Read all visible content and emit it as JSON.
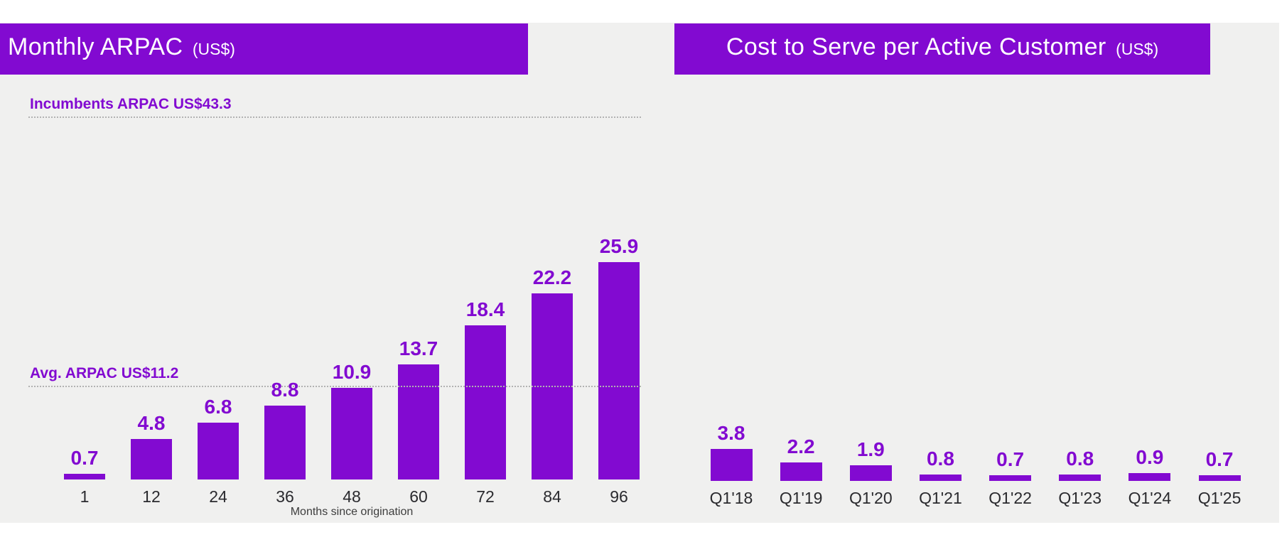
{
  "slide": {
    "background": "#ffffff",
    "panel_color": "#f0f0ef",
    "accent_purple": "#820ad1",
    "reference_line_color": "#b2b2b2",
    "tick_color": "#2a2a2e"
  },
  "chart_data": [
    {
      "type": "bar",
      "title": "Monthly ARPAC",
      "unit_suffix": "(US$)",
      "categories": [
        "1",
        "12",
        "24",
        "36",
        "48",
        "60",
        "72",
        "84",
        "96"
      ],
      "values": [
        0.7,
        4.8,
        6.8,
        8.8,
        10.9,
        13.7,
        18.4,
        22.2,
        25.9
      ],
      "xlabel": "Months since origination",
      "ylabel": "",
      "ylim": [
        0,
        50
      ],
      "grid": false,
      "legend": "none",
      "bar_color": "#820ad1",
      "reference_lines": [
        {
          "label": "Incumbents ARPAC US$43.3",
          "value": 43.3
        },
        {
          "label": "Avg. ARPAC US$11.2",
          "value": 11.2
        }
      ]
    },
    {
      "type": "bar",
      "title": "Cost to Serve per Active Customer",
      "unit_suffix": "(US$)",
      "categories": [
        "Q1'18",
        "Q1'19",
        "Q1'20",
        "Q1'21",
        "Q1'22",
        "Q1'23",
        "Q1'24",
        "Q1'25"
      ],
      "values": [
        3.8,
        2.2,
        1.9,
        0.8,
        0.7,
        0.8,
        0.9,
        0.7
      ],
      "xlabel": "",
      "ylabel": "",
      "ylim": [
        0,
        50
      ],
      "grid": false,
      "legend": "none",
      "bar_color": "#820ad1",
      "reference_lines": []
    }
  ]
}
